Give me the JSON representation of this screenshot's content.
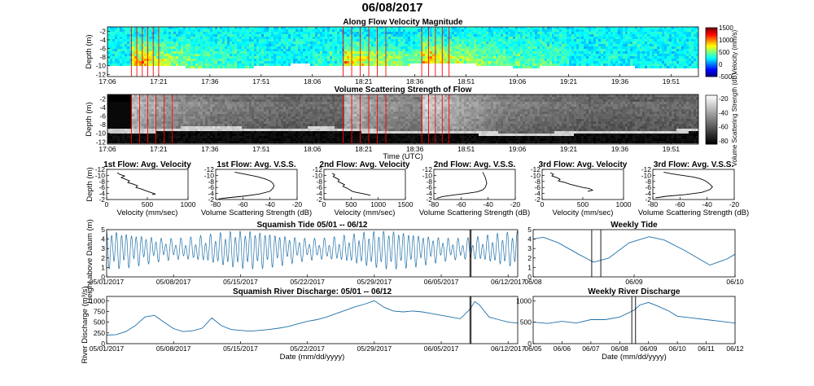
{
  "figure_title": "06/08/2017",
  "colormap_colors": {
    "jet": [
      "#00008f",
      "#0000ff",
      "#0080ff",
      "#00ffff",
      "#80ff80",
      "#ffff00",
      "#ff8000",
      "#ff0000",
      "#800000"
    ],
    "gray": [
      "#000000",
      "#ffffff"
    ],
    "marker_red": "#ff0000",
    "line_blue": "#1f6fa8",
    "line_black": "#000000"
  },
  "chart_data": [
    {
      "id": "velocity",
      "type": "heatmap",
      "title": "Along Flow Velocity Magnitude",
      "ylabel": "Depth (m)",
      "xlabel": "",
      "xticks": [
        "17:06",
        "17:21",
        "17:36",
        "17:51",
        "18:06",
        "18:21",
        "18:36",
        "18:51",
        "19:06",
        "19:21",
        "19:36",
        "19:51"
      ],
      "xrange_minutes": [
        0,
        173
      ],
      "yticks": [
        "-2",
        "-4",
        "-6",
        "-8",
        "-10",
        "-12"
      ],
      "yrange": [
        -12.5,
        -1
      ],
      "colorbar": {
        "label": "Velocity (mm/s)",
        "ticks": [
          "1500",
          "1000",
          "500",
          "0",
          "-500"
        ],
        "range": [
          -500,
          1500
        ]
      },
      "events_start_minutes": [
        7,
        69,
        92
      ],
      "red_markers_minutes": [
        7,
        8.6,
        10.2,
        11.8,
        13.4,
        15,
        69,
        71.5,
        74,
        76.5,
        79,
        81.5,
        92,
        94,
        96,
        98,
        100
      ]
    },
    {
      "id": "vss",
      "type": "heatmap",
      "title": "Volume Scattering Strength of Flow",
      "ylabel": "Depth (m)",
      "xlabel": "Time (UTC)",
      "xticks": [
        "17:06",
        "17:21",
        "17:36",
        "17:51",
        "18:06",
        "18:21",
        "18:36",
        "18:51",
        "19:06",
        "19:21",
        "19:36",
        "19:51"
      ],
      "xrange_minutes": [
        0,
        173
      ],
      "yticks": [
        "-2",
        "-4",
        "-6",
        "-8",
        "-10",
        "-12"
      ],
      "yrange": [
        -12.5,
        -1
      ],
      "colorbar": {
        "label": "Volume Scattering Strength (dB)",
        "ticks": [
          "-20",
          "-40",
          "-60",
          "-80"
        ],
        "range": [
          -80,
          -20
        ]
      },
      "red_markers_minutes": [
        7,
        9.4,
        11.8,
        14.2,
        16.6,
        19,
        69,
        71.5,
        74,
        76.5,
        79,
        81.5,
        92,
        94,
        96,
        98,
        100
      ]
    },
    {
      "id": "p1v",
      "type": "line",
      "title": "1st Flow: Avg. Velocity",
      "xlabel": "Velocity (mm/sec)",
      "ylabel": "Depth (m)",
      "xlim": [
        0,
        1000
      ],
      "xticks": [
        "0",
        "500",
        "1000"
      ],
      "ylim": [
        -12,
        -1
      ],
      "yticks": [
        "-2",
        "-4",
        "-6",
        "-8",
        "-10",
        "-12"
      ],
      "x": [
        130,
        160,
        220,
        180,
        230,
        280,
        260,
        330,
        380,
        360,
        430,
        480,
        520,
        560,
        600,
        560
      ],
      "y": [
        -2.2,
        -2.8,
        -3.4,
        -4.0,
        -4.6,
        -5.2,
        -5.8,
        -6.4,
        -7.0,
        -7.6,
        -8.2,
        -8.8,
        -9.2,
        -9.6,
        -10.0,
        -10.2
      ]
    },
    {
      "id": "p1s",
      "type": "line",
      "title": "1st Flow: Avg. V.S.S.",
      "xlabel": "Volume Scattering Strength (dB)",
      "ylabel": "",
      "xlim": [
        -80,
        -20
      ],
      "xticks": [
        "-80",
        "-60",
        "-40",
        "-20"
      ],
      "ylim": [
        -12,
        -1
      ],
      "yticks": [
        "-2",
        "-4",
        "-6",
        "-8",
        "-10",
        "-12"
      ],
      "x": [
        -66,
        -58,
        -50,
        -44,
        -40,
        -38,
        -37,
        -38,
        -40,
        -48,
        -60,
        -72,
        -78
      ],
      "y": [
        -2.0,
        -2.8,
        -3.6,
        -4.4,
        -5.2,
        -6.0,
        -7.0,
        -8.0,
        -9.0,
        -10.0,
        -10.8,
        -11.4,
        -11.8
      ]
    },
    {
      "id": "p2v",
      "type": "line",
      "title": "2nd Flow: Avg. Velocity",
      "xlabel": "Velocity (mm/sec)",
      "ylabel": "",
      "xlim": [
        0,
        1500
      ],
      "xticks": [
        "0",
        "500",
        "1000",
        "1500"
      ],
      "ylim": [
        -12,
        -1
      ],
      "yticks": [
        "-2",
        "-4",
        "-6",
        "-8",
        "-10",
        "-12"
      ],
      "x": [
        150,
        200,
        170,
        230,
        280,
        260,
        320,
        380,
        350,
        420,
        470,
        520,
        600,
        700,
        800,
        860
      ],
      "y": [
        -2.4,
        -3.0,
        -3.6,
        -4.2,
        -4.8,
        -5.4,
        -6.0,
        -6.6,
        -7.2,
        -7.8,
        -8.4,
        -9.0,
        -9.4,
        -9.8,
        -10.2,
        -10.5
      ]
    },
    {
      "id": "p2s",
      "type": "line",
      "title": "2nd Flow: Avg. V.S.S.",
      "xlabel": "Volume Scattering Strength (dB)",
      "ylabel": "",
      "xlim": [
        -80,
        -20
      ],
      "xticks": [
        "-80",
        "-60",
        "-40",
        "-20"
      ],
      "ylim": [
        -12,
        -1
      ],
      "yticks": [
        "-2",
        "-4",
        "-6",
        "-8",
        "-10",
        "-12"
      ],
      "x": [
        -44,
        -42,
        -41,
        -42,
        -44,
        -48,
        -56,
        -66,
        -74,
        -78
      ],
      "y": [
        -2.0,
        -4.0,
        -6.0,
        -7.5,
        -8.5,
        -9.2,
        -9.8,
        -10.4,
        -11.0,
        -11.6
      ]
    },
    {
      "id": "p3v",
      "type": "line",
      "title": "3rd Flow: Avg. Velocity",
      "xlabel": "Velocity (mm/sec)",
      "ylabel": "",
      "xlim": [
        0,
        1000
      ],
      "xticks": [
        "0",
        "500",
        "1000"
      ],
      "ylim": [
        -12,
        -1
      ],
      "yticks": [
        "-2",
        "-4",
        "-6",
        "-8",
        "-10",
        "-12"
      ],
      "x": [
        100,
        140,
        120,
        180,
        220,
        200,
        280,
        340,
        420,
        500,
        580,
        620,
        560
      ],
      "y": [
        -2.2,
        -2.8,
        -3.4,
        -4.0,
        -4.6,
        -5.2,
        -5.8,
        -6.4,
        -7.0,
        -7.6,
        -8.0,
        -8.6,
        -9.0
      ]
    },
    {
      "id": "p3s",
      "type": "line",
      "title": "3rd Flow: Avg. V.S.S.",
      "xlabel": "Volume Scattering Strength (dB)",
      "ylabel": "",
      "xlim": [
        -80,
        -20
      ],
      "xticks": [
        "-80",
        "-60",
        "-40",
        "-20"
      ],
      "ylim": [
        -12,
        -1
      ],
      "yticks": [
        "-2",
        "-4",
        "-6",
        "-8",
        "-10",
        "-12"
      ],
      "x": [
        -72,
        -66,
        -58,
        -50,
        -45,
        -42,
        -40,
        -38,
        -36,
        -38,
        -44,
        -56,
        -70,
        -78
      ],
      "y": [
        -2.0,
        -2.6,
        -3.2,
        -3.8,
        -4.4,
        -5.0,
        -5.6,
        -6.4,
        -7.4,
        -8.4,
        -9.4,
        -10.2,
        -10.8,
        -11.4
      ]
    },
    {
      "id": "tide",
      "type": "line",
      "title": "Squamish Tide 05/01 -- 06/12",
      "xlabel": "",
      "ylabel": "Height above Datum (m)",
      "xlim_days": [
        0,
        43
      ],
      "xticks": [
        "05/01/2017",
        "05/08/2017",
        "05/15/2017",
        "05/22/2017",
        "05/29/2017",
        "06/05/2017",
        "06/12/2017"
      ],
      "ylim": [
        0,
        5
      ],
      "yticks": [
        "0",
        "1",
        "2",
        "3",
        "4",
        "5"
      ],
      "series_note": "semidiurnal tide, ~1.93 cycles/day, spring-neap modulated",
      "vlines_days": [
        38.0,
        38.12
      ]
    },
    {
      "id": "wtide",
      "type": "line",
      "title": "Weekly Tide",
      "xlabel": "",
      "ylabel": "",
      "xlim_days": [
        0,
        2
      ],
      "xticks": [
        "06/08",
        "06/09",
        "06/10"
      ],
      "ylim": [
        0,
        5
      ],
      "yticks": [
        "0",
        "1",
        "2",
        "3",
        "4",
        "5"
      ],
      "x": [
        0,
        0.1,
        0.25,
        0.45,
        0.6,
        0.75,
        0.95,
        1.15,
        1.3,
        1.5,
        1.75,
        1.92,
        2.0
      ],
      "y": [
        4.0,
        4.2,
        3.6,
        2.4,
        1.55,
        2.0,
        3.6,
        4.25,
        3.9,
        2.8,
        1.25,
        1.9,
        2.4
      ],
      "vlines_days": [
        0.58,
        0.67
      ]
    },
    {
      "id": "river",
      "type": "line",
      "title": "Squamish River Discharge: 05/01 -- 06/12",
      "xlabel": "Date (mm/dd/yyyy)",
      "ylabel": "River Discharge (m³/s)",
      "xlim_days": [
        0,
        43
      ],
      "xticks": [
        "05/01/2017",
        "05/08/2017",
        "05/15/2017",
        "05/22/2017",
        "05/29/2017",
        "06/05/2017",
        "06/12/2017"
      ],
      "ylim": [
        0,
        1100
      ],
      "yticks": [
        "0",
        "250",
        "500",
        "750",
        "1000"
      ],
      "x": [
        0,
        1,
        2,
        3,
        4,
        5,
        6,
        7,
        8,
        9,
        10,
        11,
        12,
        13,
        14,
        15,
        16,
        17,
        18,
        19,
        20,
        21,
        22,
        23,
        24,
        25,
        26,
        27,
        28,
        29,
        30,
        31,
        32,
        33,
        34,
        35,
        36,
        37,
        38,
        38.5,
        39,
        40,
        41,
        42,
        43
      ],
      "y": [
        200,
        210,
        280,
        420,
        620,
        660,
        500,
        350,
        280,
        300,
        360,
        600,
        420,
        330,
        310,
        290,
        310,
        330,
        360,
        400,
        460,
        520,
        560,
        620,
        700,
        780,
        860,
        920,
        1000,
        850,
        760,
        740,
        760,
        740,
        700,
        660,
        620,
        580,
        800,
        980,
        900,
        620,
        560,
        500,
        480
      ],
      "vlines_days": [
        38.0,
        38.12
      ]
    },
    {
      "id": "wriver",
      "type": "line",
      "title": "Weekly River Discharge",
      "xlabel": "Date (mm/dd/yyyy)",
      "ylabel": "",
      "xlim_days": [
        0,
        7
      ],
      "xticks": [
        "06/05",
        "06/06",
        "06/07",
        "06/08",
        "06/09",
        "06/10",
        "06/11",
        "06/12"
      ],
      "ylim": [
        0,
        1100
      ],
      "yticks": [
        "0",
        "500",
        "1000"
      ],
      "x": [
        0,
        0.5,
        1,
        1.5,
        2,
        2.5,
        3,
        3.5,
        3.7,
        4,
        4.3,
        4.7,
        5,
        5.5,
        6,
        6.5,
        7
      ],
      "y": [
        500,
        470,
        520,
        480,
        560,
        560,
        620,
        780,
        900,
        960,
        880,
        760,
        640,
        600,
        560,
        520,
        480
      ],
      "vlines_days": [
        3.42,
        3.55
      ]
    }
  ]
}
